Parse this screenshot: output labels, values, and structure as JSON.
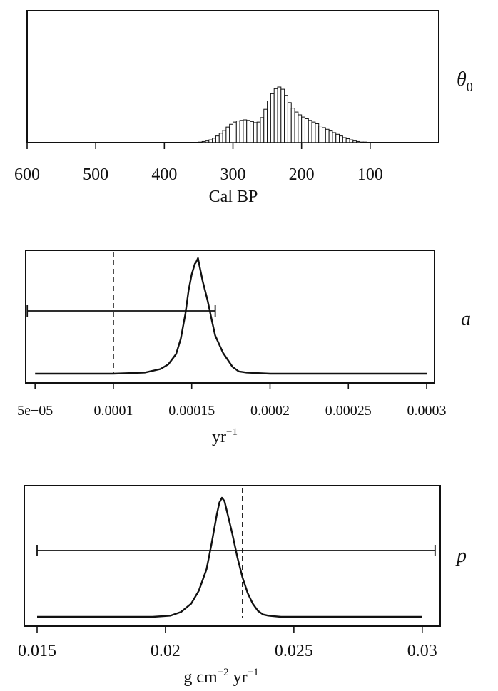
{
  "chart_data": [
    {
      "type": "bar",
      "param_label": "θ",
      "param_subscript": "0",
      "xlabel": "Cal BP",
      "x_reversed": true,
      "xlim": [
        600,
        0
      ],
      "xticks": [
        600,
        500,
        400,
        300,
        200,
        100
      ],
      "xtick_labels": [
        "600",
        "500",
        "400",
        "300",
        "200",
        "100"
      ],
      "histogram": {
        "bin_start": 350,
        "bin_width": 5,
        "heights": [
          0.01,
          0.02,
          0.03,
          0.05,
          0.08,
          0.12,
          0.17,
          0.22,
          0.28,
          0.33,
          0.37,
          0.39,
          0.4,
          0.41,
          0.4,
          0.38,
          0.36,
          0.37,
          0.45,
          0.6,
          0.75,
          0.88,
          0.97,
          1.0,
          0.96,
          0.85,
          0.72,
          0.62,
          0.55,
          0.5,
          0.46,
          0.43,
          0.4,
          0.37,
          0.34,
          0.3,
          0.27,
          0.24,
          0.21,
          0.18,
          0.15,
          0.12,
          0.09,
          0.07,
          0.05,
          0.03,
          0.02,
          0.01,
          0.01,
          0.005,
          0.003,
          0.002,
          0.001,
          0.0
        ]
      }
    },
    {
      "type": "line",
      "param_label": "a",
      "xlabel": "yr",
      "xlabel_superscript": "−1",
      "xlim": [
        4.4e-05,
        0.000305
      ],
      "xticks": [
        5e-05,
        0.0001,
        0.00015,
        0.0002,
        0.00025,
        0.0003
      ],
      "xtick_labels": [
        "5e−05",
        "0.0001",
        "0.00015",
        "0.0002",
        "0.00025",
        "0.0003"
      ],
      "dashed_line_x": 0.0001,
      "interval": [
        4.5e-05,
        0.000165
      ],
      "density": {
        "x": [
          5e-05,
          8e-05,
          0.0001,
          0.00012,
          0.00013,
          0.000135,
          0.00014,
          0.000143,
          0.000146,
          0.000148,
          0.00015,
          0.000152,
          0.000153,
          0.000154,
          0.000155,
          0.000157,
          0.00016,
          0.000163,
          0.000165,
          0.000168,
          0.00017,
          0.000173,
          0.000176,
          0.00018,
          0.000185,
          0.0002,
          0.00025,
          0.0003
        ],
        "y": [
          0.0,
          0.0,
          0.0,
          0.01,
          0.04,
          0.08,
          0.17,
          0.3,
          0.52,
          0.72,
          0.86,
          0.95,
          0.97,
          1.0,
          0.93,
          0.8,
          0.64,
          0.45,
          0.33,
          0.24,
          0.18,
          0.12,
          0.06,
          0.02,
          0.01,
          0.0,
          0.0,
          0.0
        ]
      }
    },
    {
      "type": "line",
      "param_label": "p",
      "xlabel_parts": [
        "g cm",
        "−2",
        " yr",
        "−1"
      ],
      "xlim": [
        0.0145,
        0.0307
      ],
      "xticks": [
        0.015,
        0.02,
        0.025,
        0.03
      ],
      "xtick_labels": [
        "0.015",
        "0.02",
        "0.025",
        "0.03"
      ],
      "dashed_line_x": 0.023,
      "interval": [
        0.015,
        0.0305
      ],
      "density": {
        "x": [
          0.015,
          0.018,
          0.0195,
          0.0202,
          0.0206,
          0.021,
          0.0213,
          0.0216,
          0.0218,
          0.022,
          0.0221,
          0.0222,
          0.0223,
          0.0224,
          0.0226,
          0.0228,
          0.023,
          0.0232,
          0.0234,
          0.0236,
          0.0238,
          0.024,
          0.0245,
          0.025,
          0.03
        ],
        "y": [
          0.0,
          0.0,
          0.0,
          0.01,
          0.04,
          0.11,
          0.22,
          0.4,
          0.62,
          0.86,
          0.96,
          1.0,
          0.97,
          0.88,
          0.7,
          0.5,
          0.33,
          0.2,
          0.11,
          0.05,
          0.02,
          0.01,
          0.0,
          0.0,
          0.0
        ]
      }
    }
  ]
}
